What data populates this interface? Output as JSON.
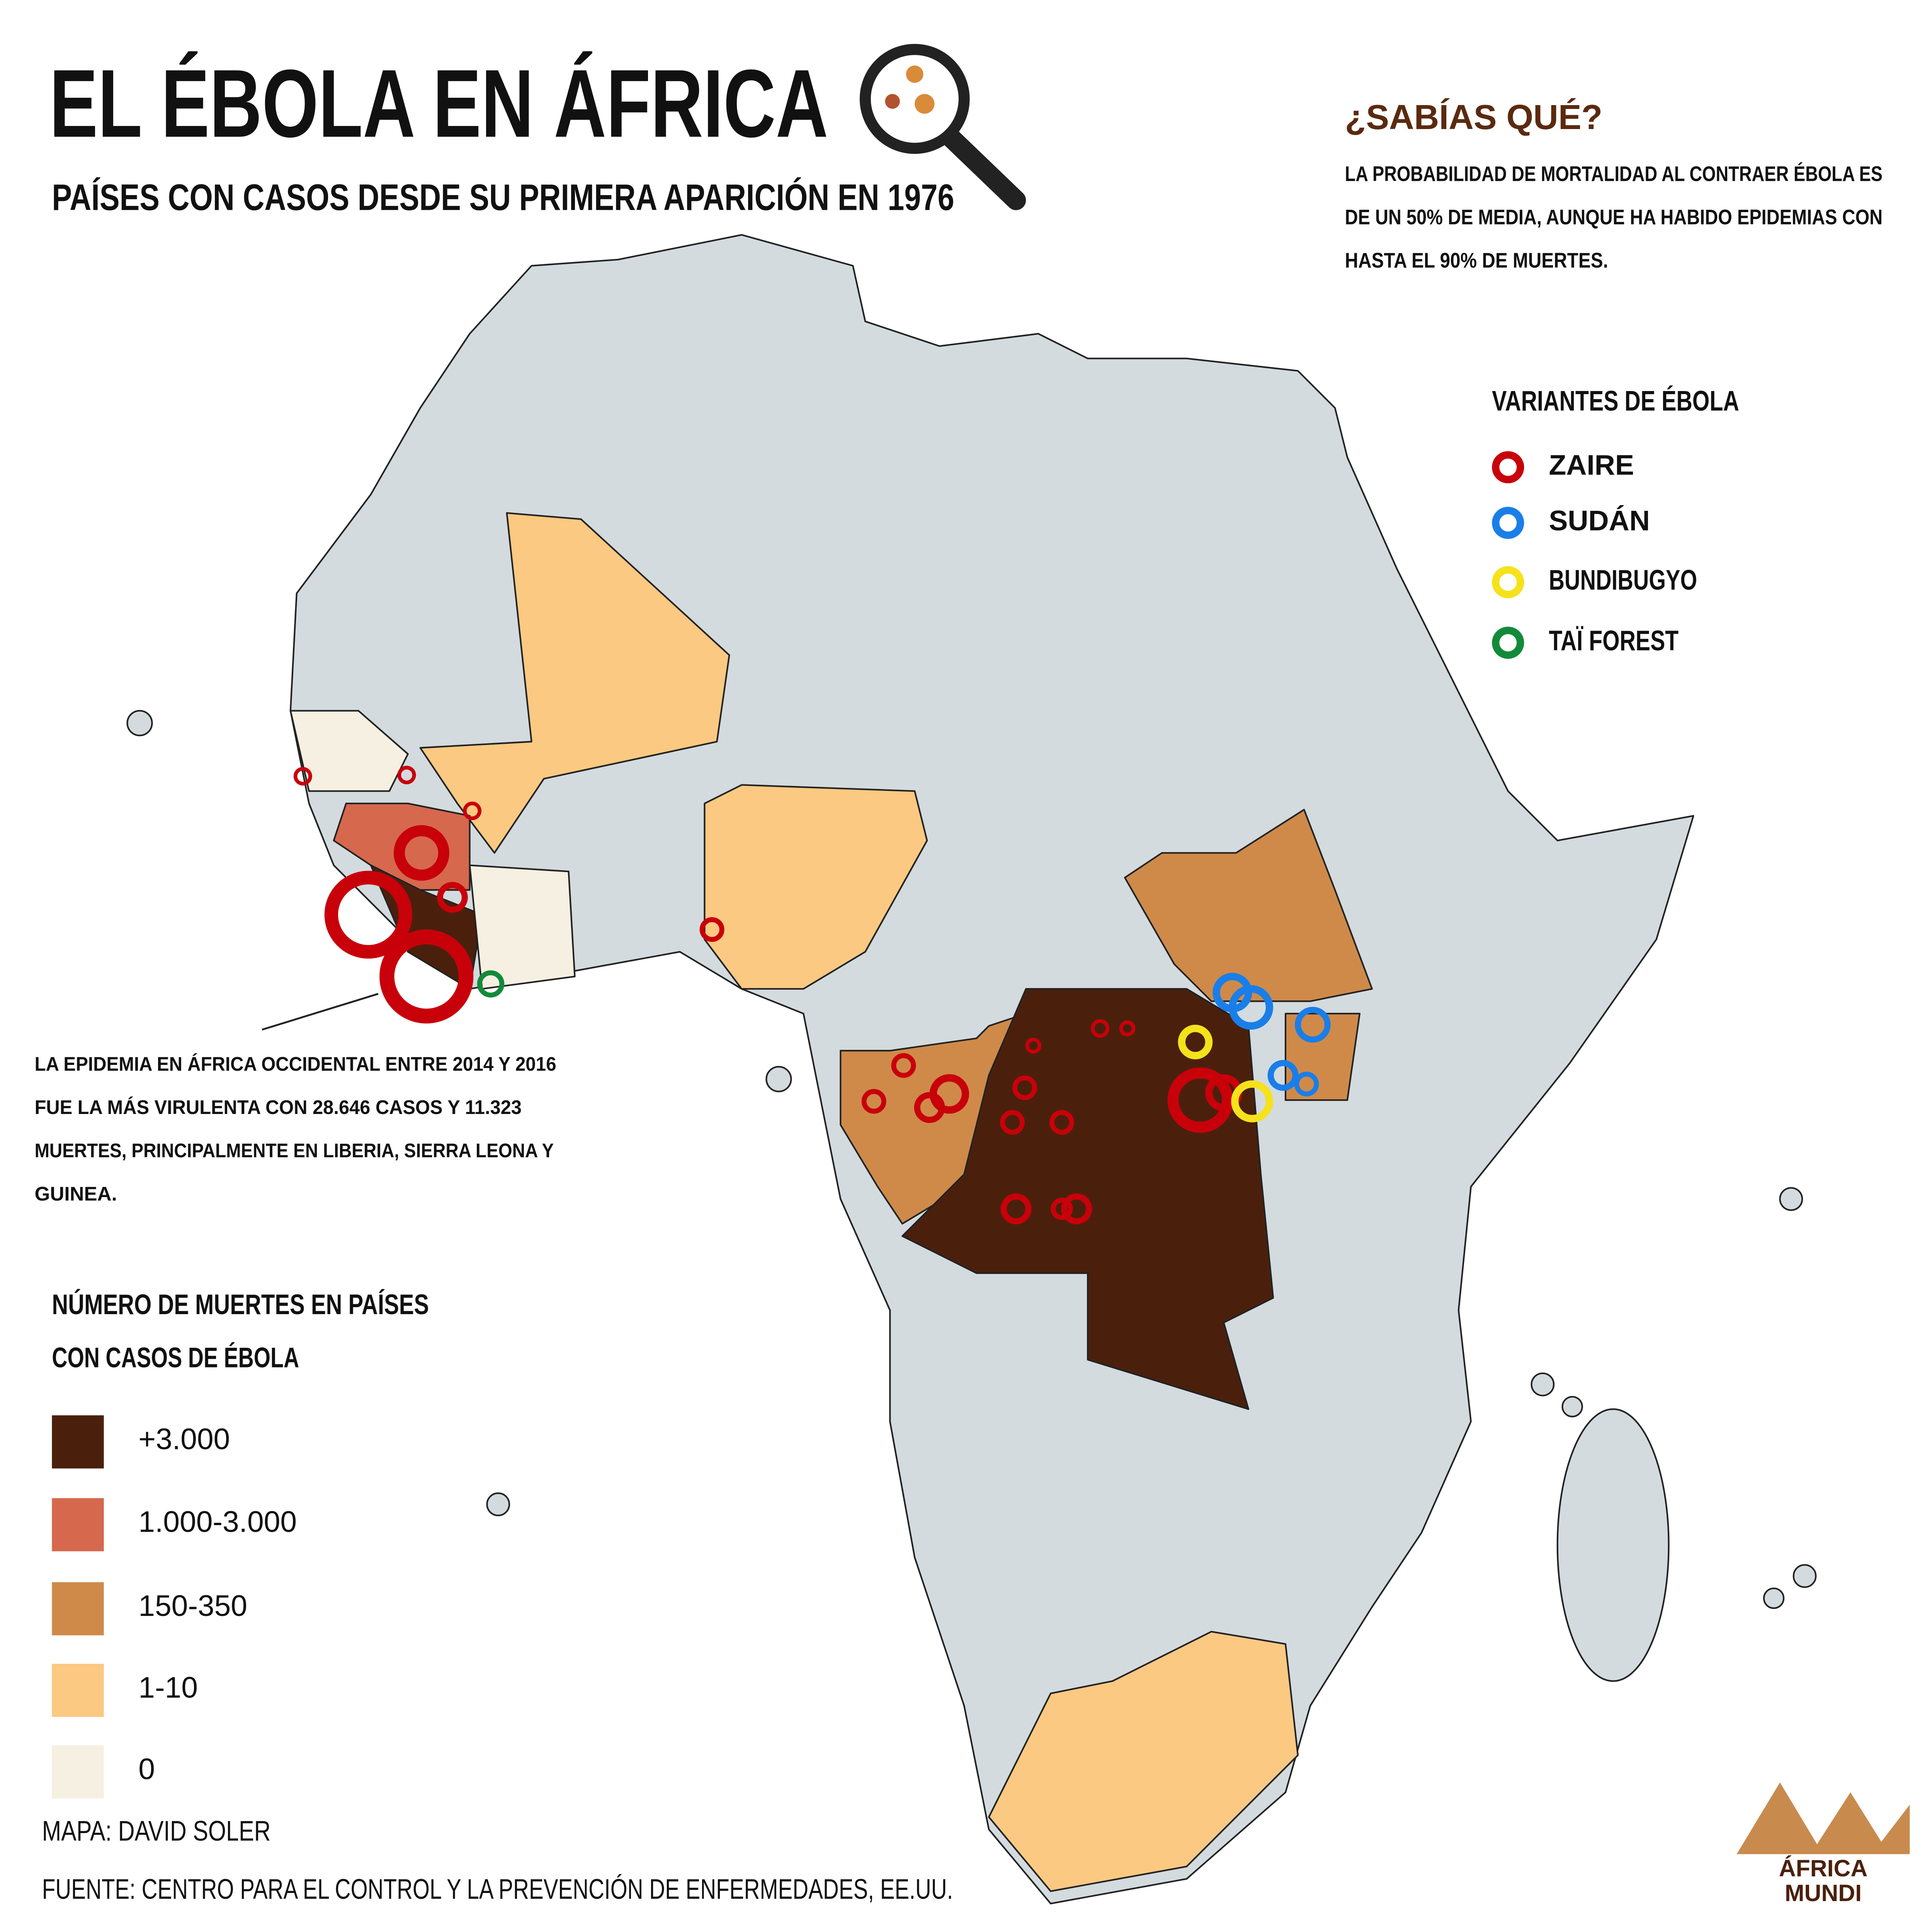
{
  "header": {
    "title": "EL ÉBOLA EN ÁFRICA",
    "subtitle": "PAÍSES CON CASOS DESDE SU PRIMERA APARICIÓN EN 1976"
  },
  "fact": {
    "title": "¿SABÍAS QUÉ?",
    "lines": [
      "LA PROBABILIDAD DE MORTALIDAD AL CONTRAER ÉBOLA ES",
      "DE UN 50% DE MEDIA, AUNQUE HA HABIDO EPIDEMIAS CON",
      "HASTA EL 90% DE MUERTES."
    ]
  },
  "variants": {
    "title": "VARIANTES DE ÉBOLA",
    "items": [
      "ZAIRE",
      "SUDÁN",
      "BUNDIBUGYO",
      "TAÏ FOREST"
    ]
  },
  "annotation": [
    "LA EPIDEMIA EN ÁFRICA OCCIDENTAL ENTRE 2014 Y 2016",
    "FUE LA MÁS VIRULENTA CON 28.646 CASOS Y 11.323",
    "MUERTES, PRINCIPALMENTE EN LIBERIA, SIERRA LEONA Y",
    "GUINEA."
  ],
  "deaths_legend": {
    "title": [
      "NÚMERO DE MUERTES EN PAÍSES",
      "CON CASOS DE ÉBOLA"
    ],
    "items": [
      "+3.000",
      "1.000-3.000",
      "150-350",
      "1-10",
      "0"
    ]
  },
  "credits": {
    "map": "MAPA: DAVID SOLER",
    "source": "FUENTE: CENTRO PARA EL CONTROL Y LA PREVENCIÓN DE ENFERMEDADES, EE.UU."
  },
  "logo": [
    "ÁFRICA",
    "MUNDI"
  ]
}
